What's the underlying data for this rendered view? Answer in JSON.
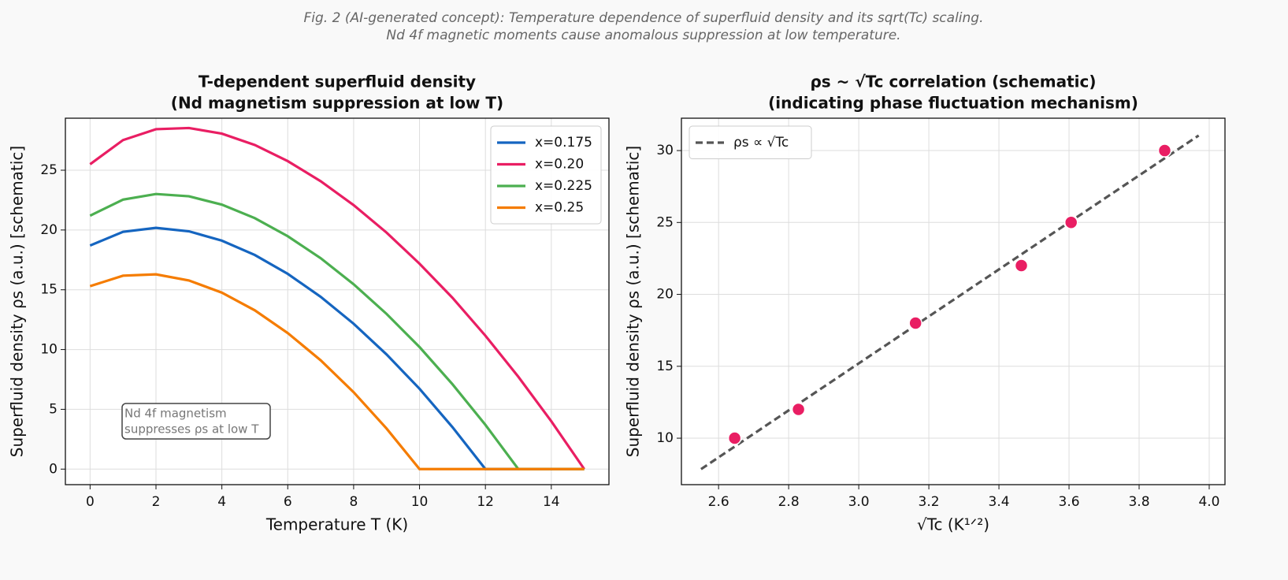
{
  "suptitle": [
    "Fig. 2 (AI-generated concept): Temperature dependence of superfluid density and its sqrt(Tc) scaling.",
    "Nd 4f magnetic moments cause anomalous suppression at low temperature."
  ],
  "chart_data": [
    {
      "type": "line",
      "title": [
        "T-dependent superfluid density",
        "(Nd magnetism suppression at low T)"
      ],
      "xlabel": "Temperature T (K)",
      "ylabel": "Superfluid density ρs (a.u.) [schematic]",
      "x": [
        0,
        1,
        2,
        3,
        4,
        5,
        6,
        7,
        8,
        9,
        10,
        11,
        12,
        13,
        14,
        15
      ],
      "series": [
        {
          "name": "x=0.175",
          "color": "#1565c0",
          "values": [
            18.7,
            19.85,
            20.18,
            19.89,
            19.11,
            17.91,
            16.33,
            14.41,
            12.16,
            9.59,
            6.72,
            3.51,
            0,
            0,
            0,
            0
          ]
        },
        {
          "name": "x=0.20",
          "color": "#e91e63",
          "values": [
            25.5,
            27.52,
            28.43,
            28.53,
            28.06,
            27.11,
            25.76,
            24.08,
            22.08,
            19.78,
            17.18,
            14.33,
            11.16,
            7.72,
            4.0,
            0
          ]
        },
        {
          "name": "x=0.225",
          "color": "#4caf50",
          "values": [
            21.2,
            22.54,
            23.01,
            22.82,
            22.12,
            20.99,
            19.48,
            17.64,
            15.46,
            12.98,
            10.21,
            7.1,
            3.7,
            0,
            0,
            0
          ]
        },
        {
          "name": "x=0.25",
          "color": "#f57c00",
          "values": [
            15.3,
            16.18,
            16.29,
            15.78,
            14.76,
            13.28,
            11.38,
            9.1,
            6.43,
            3.39,
            0,
            0,
            0,
            0,
            0,
            0
          ]
        }
      ],
      "xlim": [
        -0.75,
        15.75
      ],
      "xticks": [
        0,
        2,
        4,
        6,
        8,
        10,
        12,
        14
      ],
      "ylim": [
        -1.3,
        29.35
      ],
      "yticks": [
        0,
        5,
        10,
        15,
        20,
        25
      ],
      "grid": true,
      "legend": "upper right",
      "annotation": [
        "Nd 4f magnetism",
        "suppresses ρs at low T"
      ]
    },
    {
      "type": "scatter",
      "title": [
        "ρs ~ √Tc correlation (schematic)",
        "(indicating phase fluctuation mechanism)"
      ],
      "xlabel": "√Tc (K¹ᐟ²)",
      "ylabel": "Superfluid density ρs (a.u.) [schematic]",
      "series": [
        {
          "name": "ρs ∝ √Tc",
          "color": "#555555",
          "mark": "line",
          "linestyle": "dashed",
          "x": [
            2.55,
            3.97
          ],
          "values": [
            7.85,
            31.05
          ]
        },
        {
          "color": "#e91e63",
          "mark": "point",
          "x": [
            2.646,
            2.828,
            3.162,
            3.464,
            3.606,
            3.873
          ],
          "values": [
            10,
            12,
            18,
            22,
            25,
            30
          ]
        }
      ],
      "xlim": [
        2.494,
        4.045
      ],
      "xticks": [
        2.6,
        2.8,
        {
          "value": 3,
          "label": "3.0"
        },
        3.2,
        3.4,
        3.6,
        3.8,
        {
          "value": 4,
          "label": "4.0"
        }
      ],
      "ylim": [
        6.77,
        32.25
      ],
      "yticks": [
        10,
        15,
        20,
        25,
        30
      ],
      "grid": true,
      "legend": "upper left"
    }
  ]
}
